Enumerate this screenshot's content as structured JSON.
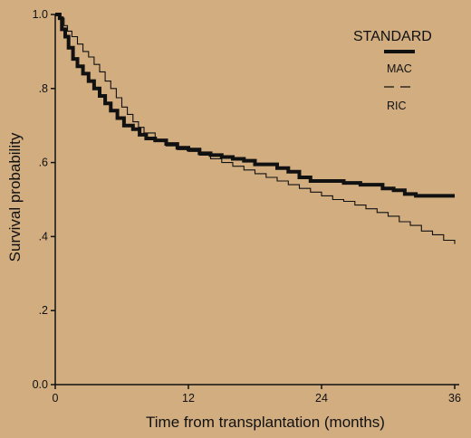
{
  "chart_data": {
    "type": "line",
    "title": "",
    "xlabel": "Time from transplantation (months)",
    "ylabel": "Survival probability",
    "xlim": [
      0,
      36
    ],
    "ylim": [
      0,
      1
    ],
    "xticks": [
      0,
      12,
      24,
      36
    ],
    "xtick_labels": [
      "0",
      "12",
      "24",
      "36"
    ],
    "yticks": [
      0,
      0.2,
      0.4,
      0.6,
      0.8,
      1.0
    ],
    "ytick_labels": [
      "0.0",
      ".2",
      ".4",
      ".6",
      ".8",
      "1.0"
    ],
    "grid": false,
    "legend": {
      "title": "STANDARD",
      "placement": "top-right",
      "entries": [
        "MAC",
        "RIC"
      ]
    },
    "background_color": "#d1ad80",
    "line_color": "#111111",
    "series": [
      {
        "name": "MAC",
        "style": "thick-step",
        "points": [
          [
            0,
            1.0
          ],
          [
            0.4,
            0.99
          ],
          [
            0.6,
            0.96
          ],
          [
            0.9,
            0.94
          ],
          [
            1.2,
            0.91
          ],
          [
            1.6,
            0.88
          ],
          [
            2.0,
            0.86
          ],
          [
            2.5,
            0.84
          ],
          [
            3.0,
            0.82
          ],
          [
            3.5,
            0.8
          ],
          [
            4.0,
            0.78
          ],
          [
            4.5,
            0.76
          ],
          [
            5.0,
            0.74
          ],
          [
            5.6,
            0.72
          ],
          [
            6.2,
            0.7
          ],
          [
            7.0,
            0.69
          ],
          [
            7.6,
            0.675
          ],
          [
            8.2,
            0.665
          ],
          [
            9.0,
            0.66
          ],
          [
            10.0,
            0.65
          ],
          [
            11.0,
            0.64
          ],
          [
            12.0,
            0.635
          ],
          [
            13.0,
            0.625
          ],
          [
            14.0,
            0.62
          ],
          [
            15.0,
            0.615
          ],
          [
            16.0,
            0.61
          ],
          [
            17.0,
            0.605
          ],
          [
            18.0,
            0.595
          ],
          [
            20.0,
            0.585
          ],
          [
            21.0,
            0.575
          ],
          [
            22.0,
            0.56
          ],
          [
            23.0,
            0.55
          ],
          [
            26.0,
            0.545
          ],
          [
            27.5,
            0.54
          ],
          [
            29.5,
            0.53
          ],
          [
            30.5,
            0.525
          ],
          [
            31.5,
            0.515
          ],
          [
            32.5,
            0.51
          ],
          [
            36.0,
            0.51
          ]
        ]
      },
      {
        "name": "RIC",
        "style": "thin-step",
        "points": [
          [
            0,
            1.0
          ],
          [
            0.5,
            0.99
          ],
          [
            0.8,
            0.97
          ],
          [
            1.1,
            0.955
          ],
          [
            1.5,
            0.94
          ],
          [
            2.0,
            0.92
          ],
          [
            2.5,
            0.9
          ],
          [
            3.0,
            0.885
          ],
          [
            3.5,
            0.865
          ],
          [
            4.0,
            0.845
          ],
          [
            4.5,
            0.82
          ],
          [
            5.0,
            0.8
          ],
          [
            5.5,
            0.775
          ],
          [
            6.0,
            0.75
          ],
          [
            6.5,
            0.73
          ],
          [
            7.0,
            0.71
          ],
          [
            7.5,
            0.695
          ],
          [
            8.0,
            0.68
          ],
          [
            9.0,
            0.66
          ],
          [
            10.0,
            0.645
          ],
          [
            11.0,
            0.635
          ],
          [
            12.0,
            0.63
          ],
          [
            13.0,
            0.62
          ],
          [
            14.0,
            0.61
          ],
          [
            15.0,
            0.6
          ],
          [
            16.0,
            0.59
          ],
          [
            17.0,
            0.58
          ],
          [
            18.0,
            0.57
          ],
          [
            19.0,
            0.56
          ],
          [
            20.0,
            0.55
          ],
          [
            21.0,
            0.54
          ],
          [
            22.0,
            0.53
          ],
          [
            23.0,
            0.52
          ],
          [
            24.0,
            0.51
          ],
          [
            25.0,
            0.5
          ],
          [
            26.0,
            0.495
          ],
          [
            27.0,
            0.485
          ],
          [
            28.0,
            0.475
          ],
          [
            29.0,
            0.465
          ],
          [
            30.0,
            0.455
          ],
          [
            31.0,
            0.44
          ],
          [
            32.0,
            0.43
          ],
          [
            33.0,
            0.415
          ],
          [
            34.0,
            0.405
          ],
          [
            35.0,
            0.39
          ],
          [
            36.0,
            0.38
          ]
        ]
      }
    ]
  }
}
